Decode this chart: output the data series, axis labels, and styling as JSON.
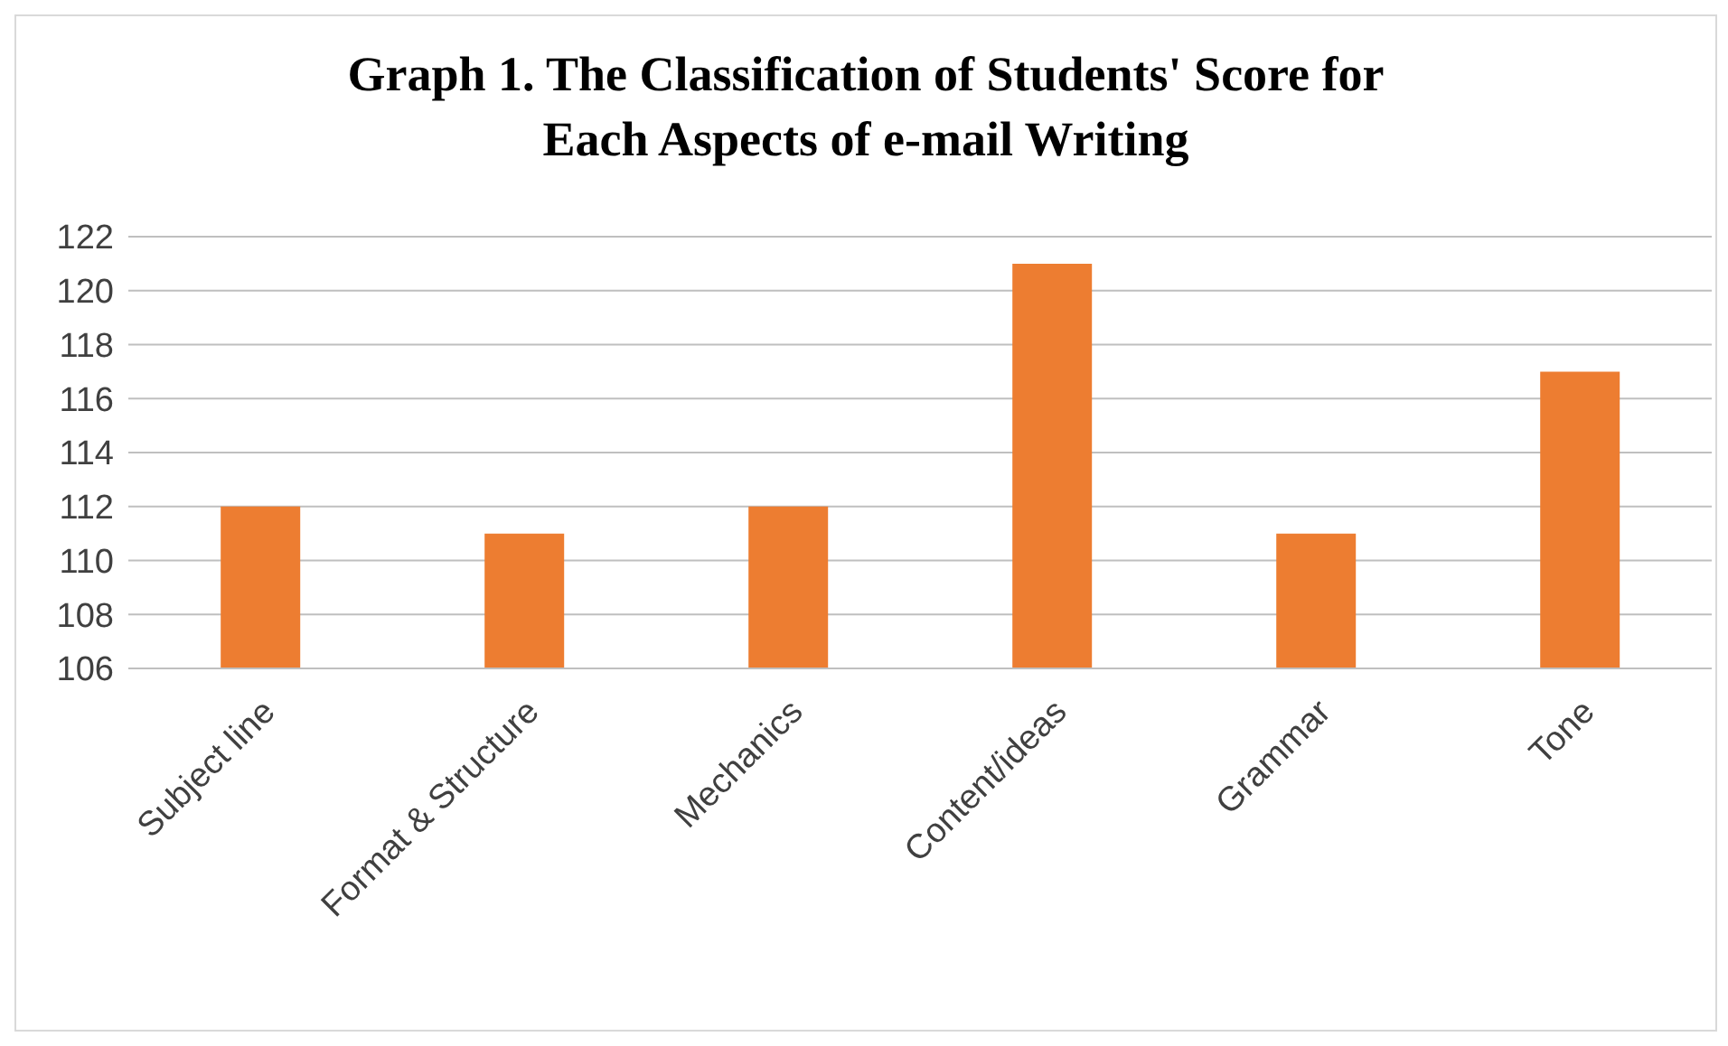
{
  "chart_data": {
    "type": "bar",
    "title": "Graph 1. The Classification of Students' Score for Each Aspects of e-mail Writing",
    "categories": [
      "Subject line",
      "Format & Structure",
      "Mechanics",
      "Content/ideas",
      "Grammar",
      "Tone"
    ],
    "values": [
      112,
      111,
      112,
      121,
      111,
      117
    ],
    "color": "#ed7d31",
    "ylim": [
      106,
      122
    ],
    "yticks": [
      106,
      108,
      110,
      112,
      114,
      116,
      118,
      120,
      122
    ],
    "grid": "y",
    "legend": false
  }
}
